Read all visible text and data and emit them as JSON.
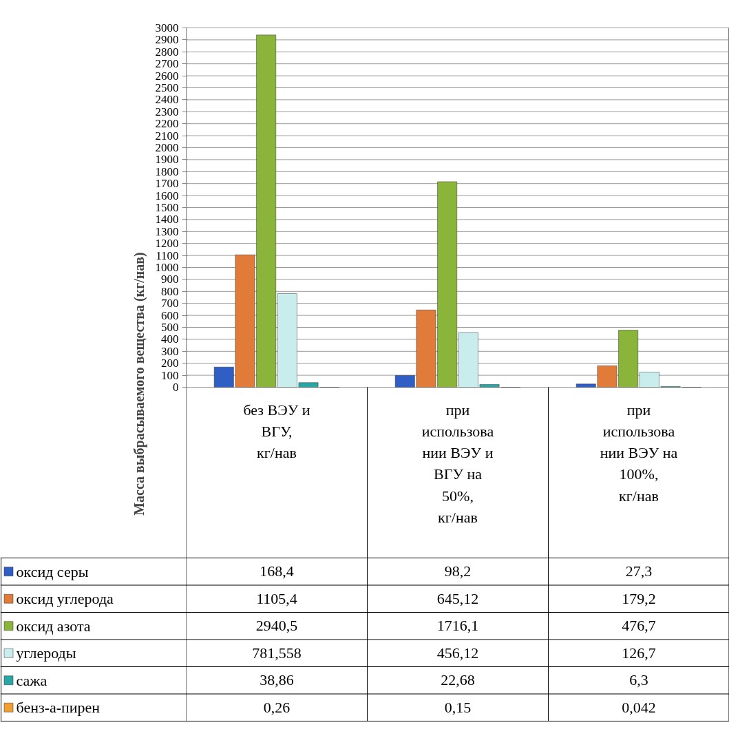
{
  "chart_data": {
    "type": "bar",
    "ylabel": "Масса выбрасываемого вещества (кг/нав)",
    "categories": [
      "без ВЭУ и ВГУ, кг/нав",
      "при использовании ВЭУ и ВГУ на 50%, кг/нав",
      "при использовании ВЭУ на 100%, кг/нав"
    ],
    "series": [
      {
        "name": "оксид серы",
        "color": "#2f5fc4",
        "values": [
          168.4,
          98.2,
          27.3
        ],
        "value_labels": [
          "168,4",
          "98,2",
          "27,3"
        ]
      },
      {
        "name": "оксид углерода",
        "color": "#e07b39",
        "values": [
          1105.4,
          645.12,
          179.2
        ],
        "value_labels": [
          "1105,4",
          "645,12",
          "179,2"
        ]
      },
      {
        "name": "оксид азота",
        "color": "#8ab53a",
        "values": [
          2940.5,
          1716.1,
          476.7
        ],
        "value_labels": [
          "2940,5",
          "1716,1",
          "476,7"
        ]
      },
      {
        "name": "углероды",
        "color": "#c9ecec",
        "values": [
          781.558,
          456.12,
          126.7
        ],
        "value_labels": [
          "781,558",
          "456,12",
          "126,7"
        ]
      },
      {
        "name": "сажа",
        "color": "#2aa6a6",
        "values": [
          38.86,
          22.68,
          6.3
        ],
        "value_labels": [
          "38,86",
          "22,68",
          "6,3"
        ]
      },
      {
        "name": "бенз-а-пирен",
        "color": "#f0a030",
        "values": [
          0.26,
          0.15,
          0.042
        ],
        "value_labels": [
          "0,26",
          "0,15",
          "0,042"
        ]
      }
    ],
    "ylim": [
      0,
      3000
    ],
    "yticks": [
      0,
      100,
      200,
      300,
      400,
      500,
      600,
      700,
      800,
      900,
      1000,
      1100,
      1200,
      1300,
      1400,
      1500,
      1600,
      1700,
      1800,
      1900,
      2000,
      2100,
      2200,
      2300,
      2400,
      2500,
      2600,
      2700,
      2800,
      2900,
      3000
    ],
    "grid": "y",
    "legend": "bottom"
  }
}
